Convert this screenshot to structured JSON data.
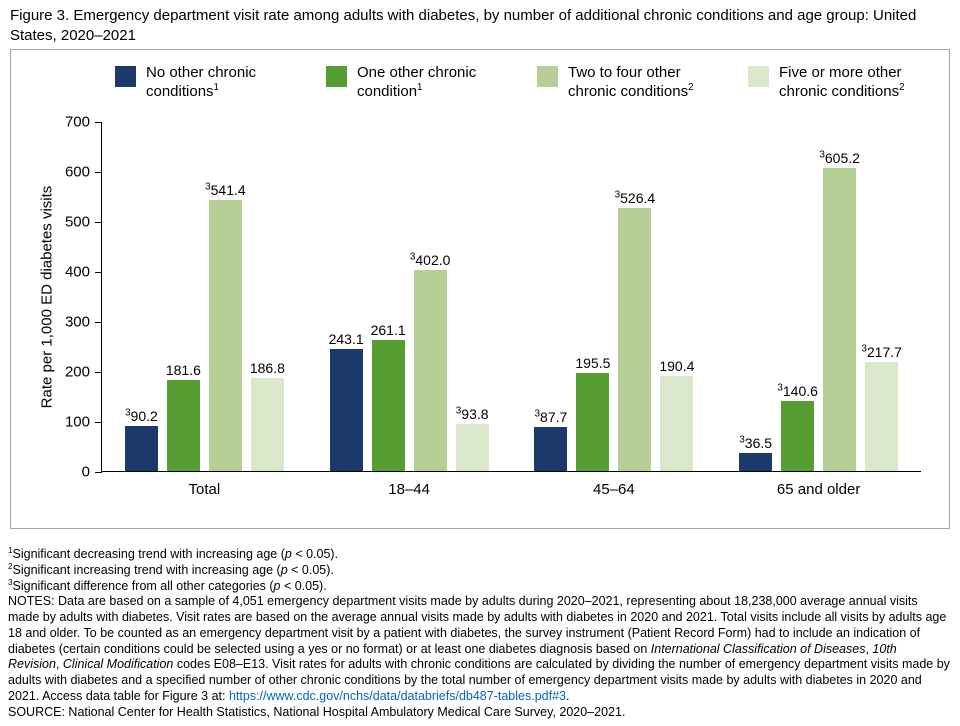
{
  "title": "Figure 3. Emergency department visit rate among adults with diabetes, by number of additional chronic conditions and age group: United States, 2020–2021",
  "chart_data": {
    "type": "bar",
    "categories": [
      "Total",
      "18–44",
      "45–64",
      "65 and older"
    ],
    "series": [
      {
        "name": "No other chronic conditions",
        "marker": "1",
        "color": "#1b3a6b",
        "values": [
          90.2,
          243.1,
          87.7,
          36.5
        ],
        "sig3": [
          true,
          false,
          true,
          true
        ]
      },
      {
        "name": "One other chronic condition",
        "marker": "1",
        "color": "#569d33",
        "values": [
          181.6,
          261.1,
          195.5,
          140.6
        ],
        "sig3": [
          false,
          false,
          false,
          true
        ]
      },
      {
        "name": "Two to four other chronic conditions",
        "marker": "2",
        "color": "#b5cf96",
        "values": [
          541.4,
          402.0,
          526.4,
          605.2
        ],
        "sig3": [
          true,
          true,
          true,
          true
        ]
      },
      {
        "name": "Five or more other chronic conditions",
        "marker": "2",
        "color": "#dbe7ca",
        "values": [
          186.8,
          93.8,
          190.4,
          217.7
        ],
        "sig3": [
          false,
          true,
          false,
          true
        ]
      }
    ],
    "title": "Emergency department visit rate among adults with diabetes, by number of additional chronic conditions and age group",
    "xlabel": "",
    "ylabel": "Rate per 1,000 ED diabetes visits",
    "ylim": [
      0,
      700
    ],
    "yticks": [
      0,
      100,
      200,
      300,
      400,
      500,
      600,
      700
    ],
    "grid": false,
    "legend_position": "top",
    "value_label_sig_marker": "3"
  },
  "footnotes": [
    "^1^Significant decreasing trend with increasing age (*p* < 0.05).",
    "^2^Significant increasing trend with increasing age (*p* < 0.05).",
    "^3^Significant difference from all other categories (*p* < 0.05)."
  ],
  "notes": "NOTES: Data are based on a sample of 4,051 emergency department visits made by adults during 2020–2021, representing about 18,238,000 average annual visits made by adults with diabetes. Visit rates are based on the average annual visits made by adults with diabetes in 2020 and 2021. Total visits include all visits by adults age 18 and older. To be counted as an emergency department visit by a patient with diabetes, the survey instrument (Patient Record Form) had to include an indication of diabetes (certain conditions could be selected using a yes or no format) or at least one diabetes diagnosis based on *International Classification of Diseases*, *10th Revision*, *Clinical Modification* codes E08–E13. Visit rates for adults with chronic conditions are calculated by dividing the number of emergency department visits made by adults with diabetes and a specified number of other chronic conditions by the total number of emergency department visits made by adults with diabetes in 2020 and 2021. Access data table for Figure 3 at: ~https://www.cdc.gov/nchs/data/databriefs/db487-tables.pdf#3~.",
  "source": "SOURCE: National Center for Health Statistics, National Hospital Ambulatory Medical Care Survey, 2020–2021."
}
